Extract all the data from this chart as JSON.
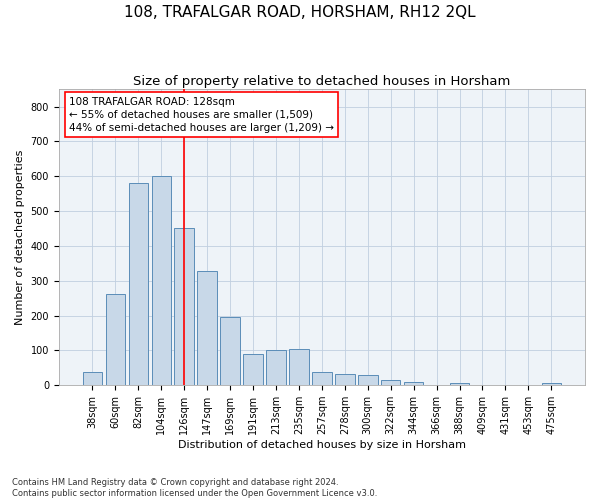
{
  "title": "108, TRAFALGAR ROAD, HORSHAM, RH12 2QL",
  "subtitle": "Size of property relative to detached houses in Horsham",
  "xlabel": "Distribution of detached houses by size in Horsham",
  "ylabel": "Number of detached properties",
  "categories": [
    "38sqm",
    "60sqm",
    "82sqm",
    "104sqm",
    "126sqm",
    "147sqm",
    "169sqm",
    "191sqm",
    "213sqm",
    "235sqm",
    "257sqm",
    "278sqm",
    "300sqm",
    "322sqm",
    "344sqm",
    "366sqm",
    "388sqm",
    "409sqm",
    "431sqm",
    "453sqm",
    "475sqm"
  ],
  "values": [
    38,
    262,
    580,
    600,
    450,
    328,
    195,
    90,
    100,
    105,
    38,
    32,
    30,
    15,
    10,
    0,
    7,
    0,
    0,
    0,
    7
  ],
  "bar_color": "#c8d8e8",
  "bar_edge_color": "#5b8db8",
  "grid_color": "#c0cfe0",
  "background_color": "#eef3f8",
  "red_line_index": 4,
  "annotation_text": "108 TRAFALGAR ROAD: 128sqm\n← 55% of detached houses are smaller (1,509)\n44% of semi-detached houses are larger (1,209) →",
  "footer_line1": "Contains HM Land Registry data © Crown copyright and database right 2024.",
  "footer_line2": "Contains public sector information licensed under the Open Government Licence v3.0.",
  "ylim": [
    0,
    850
  ],
  "yticks": [
    0,
    100,
    200,
    300,
    400,
    500,
    600,
    700,
    800
  ],
  "title_fontsize": 11,
  "subtitle_fontsize": 9.5,
  "axis_label_fontsize": 8,
  "tick_fontsize": 7,
  "annotation_fontsize": 7.5,
  "footer_fontsize": 6
}
